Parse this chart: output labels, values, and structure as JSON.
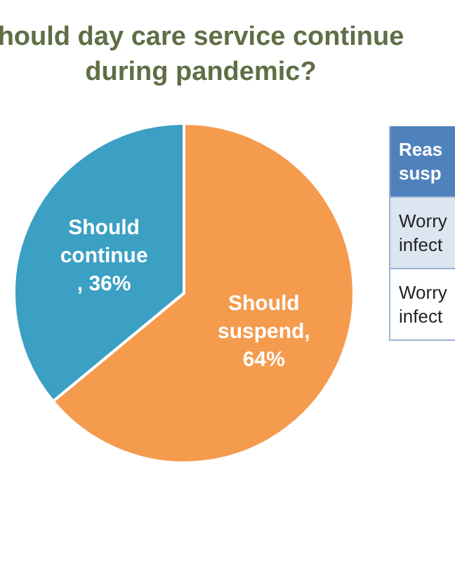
{
  "chart_data": {
    "type": "pie",
    "title": "hould day care service continue\nduring pandemic?",
    "categories": [
      "Should suspend",
      "Should continue"
    ],
    "values": [
      64,
      36
    ],
    "colors": [
      "#f59b4e",
      "#3ba0c3"
    ],
    "value_labels": [
      ",\n64%",
      ", 36%"
    ],
    "annotations": [
      "Reas\nsusp",
      "Worry\ninfect",
      "Worry\ninfect"
    ]
  }
}
